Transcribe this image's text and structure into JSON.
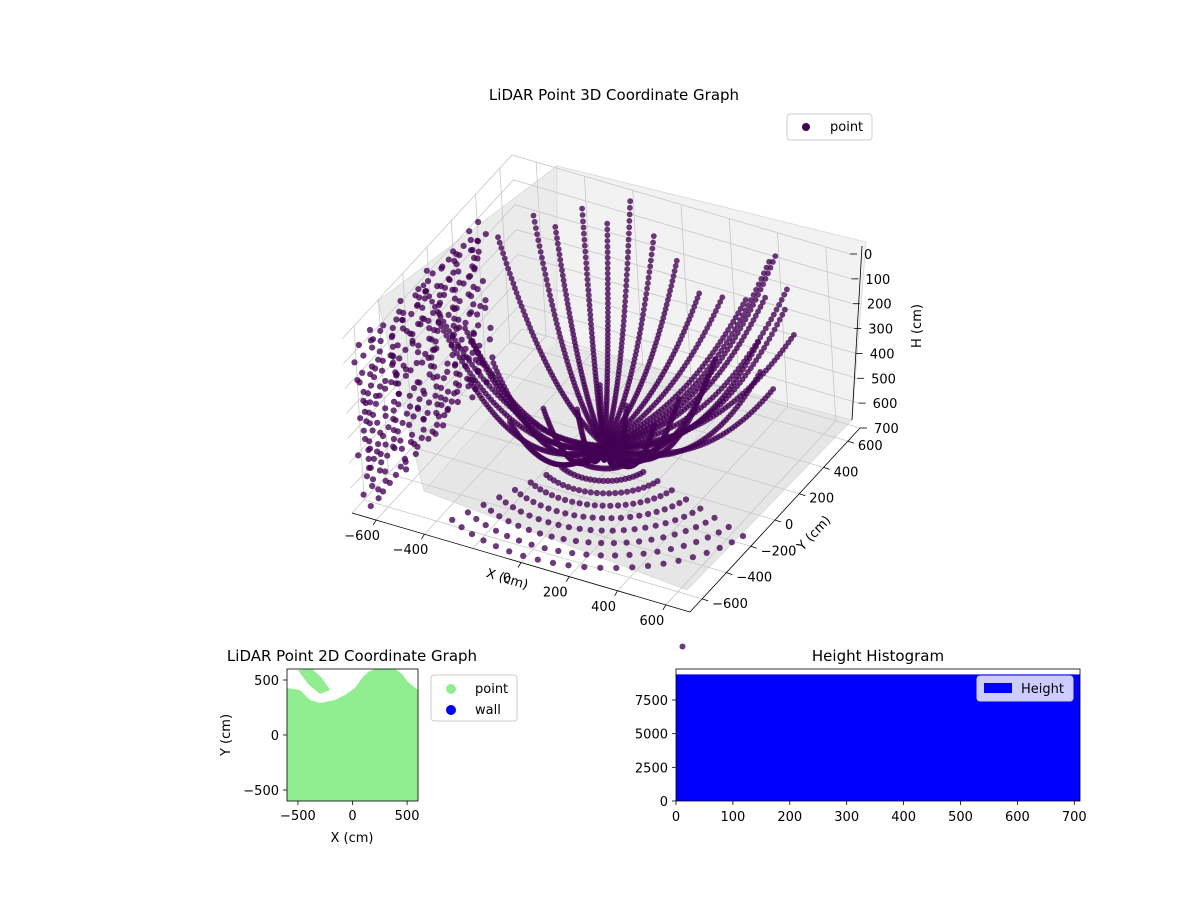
{
  "chart_data": [
    {
      "type": "scatter",
      "projection": "3d",
      "title": "LiDAR Point 3D Coordinate Graph",
      "xlabel": "X (cm)",
      "ylabel": "Y (cm)",
      "zlabel": "H (cm)",
      "xlim": [
        -700,
        700
      ],
      "ylim": [
        -700,
        700
      ],
      "zlim": [
        700,
        0
      ],
      "z_inverted": true,
      "x_ticks": [
        -600,
        -400,
        0,
        200,
        400,
        600
      ],
      "x_tick_labels": [
        "−600",
        "−400",
        "0",
        "200",
        "400",
        "600"
      ],
      "y_ticks": [
        -600,
        -400,
        -200,
        0,
        200,
        400,
        600
      ],
      "y_tick_labels": [
        "−600",
        "−400",
        "−200",
        "0",
        "200",
        "400",
        "600"
      ],
      "z_ticks": [
        0,
        100,
        200,
        300,
        400,
        500,
        600,
        700
      ],
      "z_tick_labels": [
        "0",
        "100",
        "200",
        "300",
        "400",
        "500",
        "600",
        "700"
      ],
      "grid": true,
      "legend": {
        "position": "top-right",
        "entries": [
          {
            "label": "point",
            "color": "#440154"
          }
        ]
      },
      "series": [
        {
          "name": "point",
          "color": "#440154",
          "pattern": "curved scan lines radiating from a central point near x=0, y=0, h≈600; near-vertical arcs rise toward h≈0–150 along the back walls, dense point grid on the left wall (x≈-700), fan of rays toward the front floor",
          "sample_points": [
            {
              "x": 0,
              "y": 0,
              "h": 600
            },
            {
              "x": -400,
              "y": 200,
              "h": 100
            },
            {
              "x": 300,
              "y": 500,
              "h": 0
            },
            {
              "x": 600,
              "y": 300,
              "h": 300
            },
            {
              "x": 300,
              "y": -600,
              "h": 600
            },
            {
              "x": -200,
              "y": -600,
              "h": 650
            },
            {
              "x": 100,
              "y": -700,
              "h": 700
            }
          ]
        }
      ]
    },
    {
      "type": "scatter",
      "title": "LiDAR Point 2D Coordinate Graph",
      "xlabel": "X (cm)",
      "ylabel": "Y (cm)",
      "xlim": [
        -600,
        600
      ],
      "ylim": [
        -600,
        600
      ],
      "x_ticks": [
        -500,
        0,
        500
      ],
      "x_tick_labels": [
        "−500",
        "0",
        "500"
      ],
      "y_ticks": [
        -500,
        0,
        500
      ],
      "y_tick_labels": [
        "−500",
        "0",
        "500"
      ],
      "legend": {
        "position": "outside-right",
        "entries": [
          {
            "label": "point",
            "color": "#90ee90"
          },
          {
            "label": "wall",
            "color": "#0000ff"
          }
        ]
      },
      "series": [
        {
          "name": "point",
          "color": "#90ee90",
          "fill": "covers almost the whole plot area; upper boundary irregular between y≈300 and y≈600"
        },
        {
          "name": "wall",
          "color": "#0000ff",
          "values": []
        }
      ]
    },
    {
      "type": "bar",
      "histogram": true,
      "title": "Height Histogram",
      "xlim": [
        0,
        710
      ],
      "ylim": [
        0,
        9800
      ],
      "x_ticks": [
        0,
        100,
        200,
        300,
        400,
        500,
        600,
        700
      ],
      "x_tick_labels": [
        "0",
        "100",
        "200",
        "300",
        "400",
        "500",
        "600",
        "700"
      ],
      "y_ticks": [
        0,
        2500,
        5000,
        7500
      ],
      "y_tick_labels": [
        "0",
        "2500",
        "5000",
        "7500"
      ],
      "legend": {
        "position": "top-right",
        "entries": [
          {
            "label": "Height",
            "color": "#0000ff"
          }
        ]
      },
      "series": [
        {
          "name": "Height",
          "color": "#0000ff",
          "bin_range": [
            0,
            710
          ],
          "value": 9400
        }
      ]
    }
  ]
}
